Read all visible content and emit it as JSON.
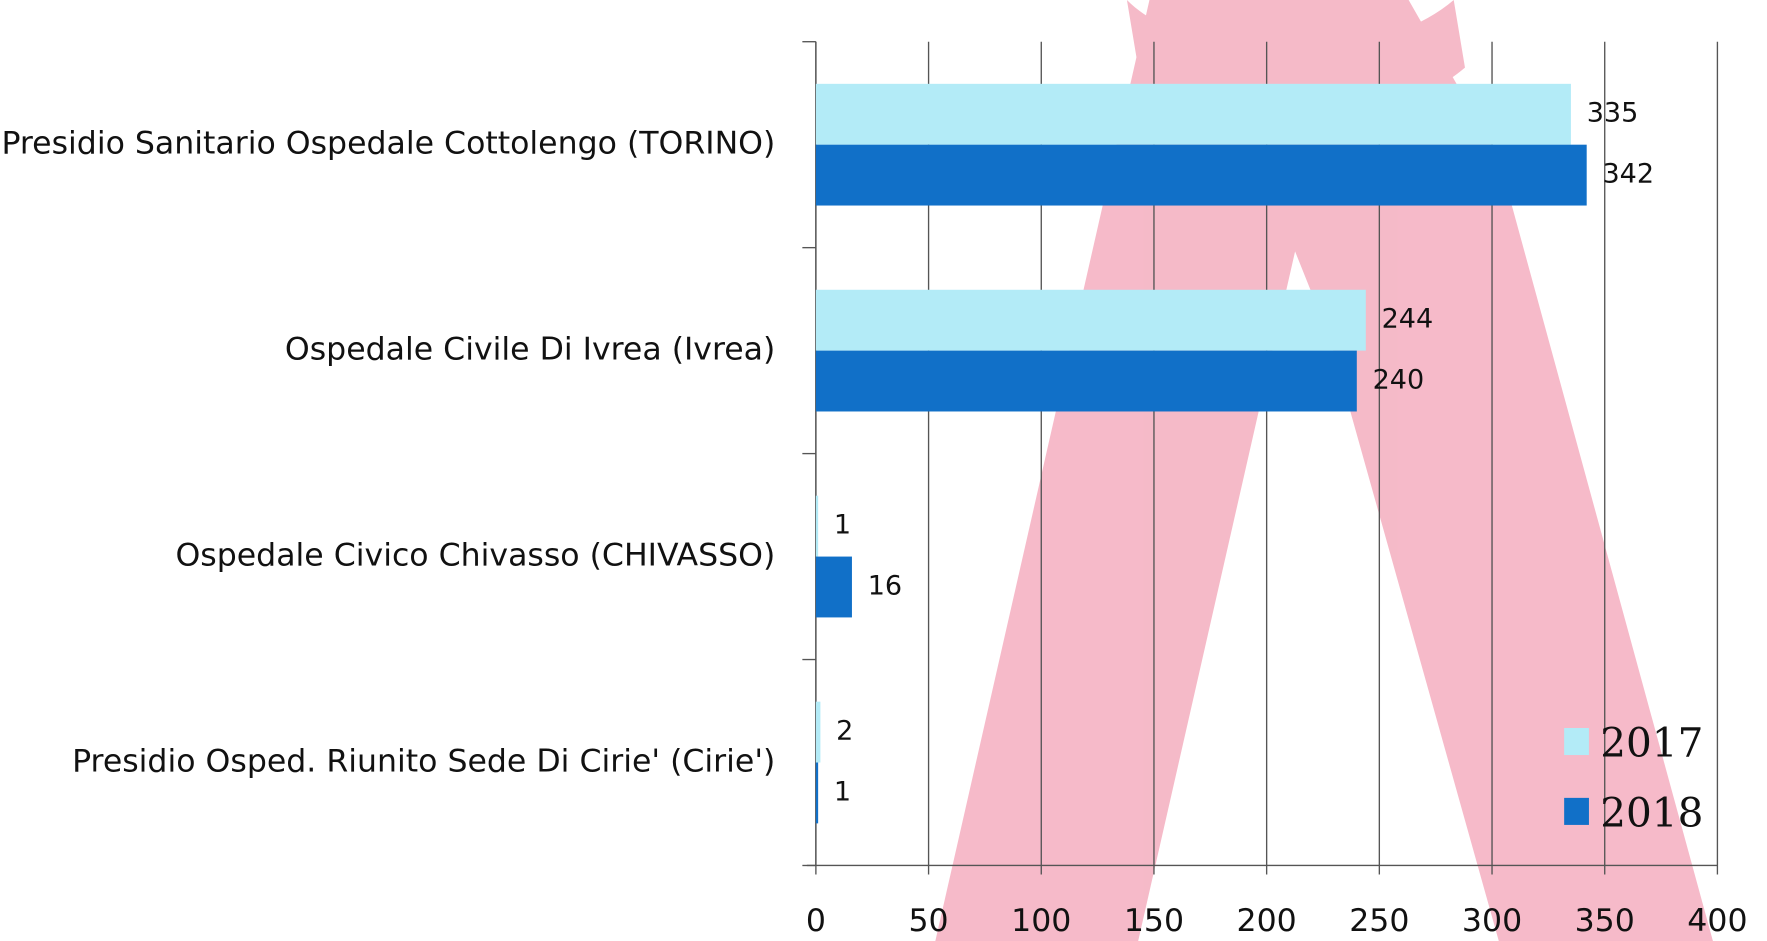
{
  "chart_data": {
    "type": "bar",
    "orientation": "horizontal",
    "categories": [
      "Presidio Sanitario Ospedale Cottolengo (TORINO)",
      "Ospedale Civile Di Ivrea (Ivrea)",
      "Ospedale Civico Chivasso (CHIVASSO)",
      "Presidio Osped. Riunito Sede Di Cirie' (Cirie')"
    ],
    "series": [
      {
        "name": "2017",
        "color": "#b3ebf7",
        "values": [
          335,
          244,
          1,
          2
        ]
      },
      {
        "name": "2018",
        "color": "#1170c8",
        "values": [
          342,
          240,
          16,
          1
        ]
      }
    ],
    "xlim": [
      0,
      400
    ],
    "xticks": [
      0,
      50,
      100,
      150,
      200,
      250,
      300,
      350,
      400
    ],
    "grid": true,
    "legend": "bottom-right"
  }
}
